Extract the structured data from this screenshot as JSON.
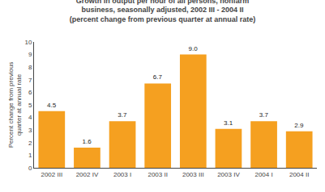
{
  "chart_data": {
    "type": "bar",
    "title": "Growth in output per hour of all persons, nonfarm\nbusiness, seasonally adjusted, 2002 III - 2004 II\n(percent change from previous quarter at annual rate)",
    "ylabel": "Percent change from previous\nquarter at annual rate",
    "categories": [
      "2002 III",
      "2002 IV",
      "2003 I",
      "2003 II",
      "2003 III",
      "2003 IV",
      "2004 I",
      "2004 II"
    ],
    "values": [
      4.5,
      1.6,
      3.7,
      6.7,
      9.0,
      3.1,
      3.7,
      2.9
    ],
    "value_labels": [
      "4.5",
      "1.6",
      "3.7",
      "6.7",
      "9.0",
      "3.1",
      "3.7",
      "2.9"
    ],
    "data_labels": true,
    "color": "#F5A020",
    "ylim": [
      0,
      10
    ],
    "yticks": [
      0,
      1,
      2,
      3,
      4,
      5,
      6,
      7,
      8,
      9,
      10
    ],
    "grid": false
  }
}
